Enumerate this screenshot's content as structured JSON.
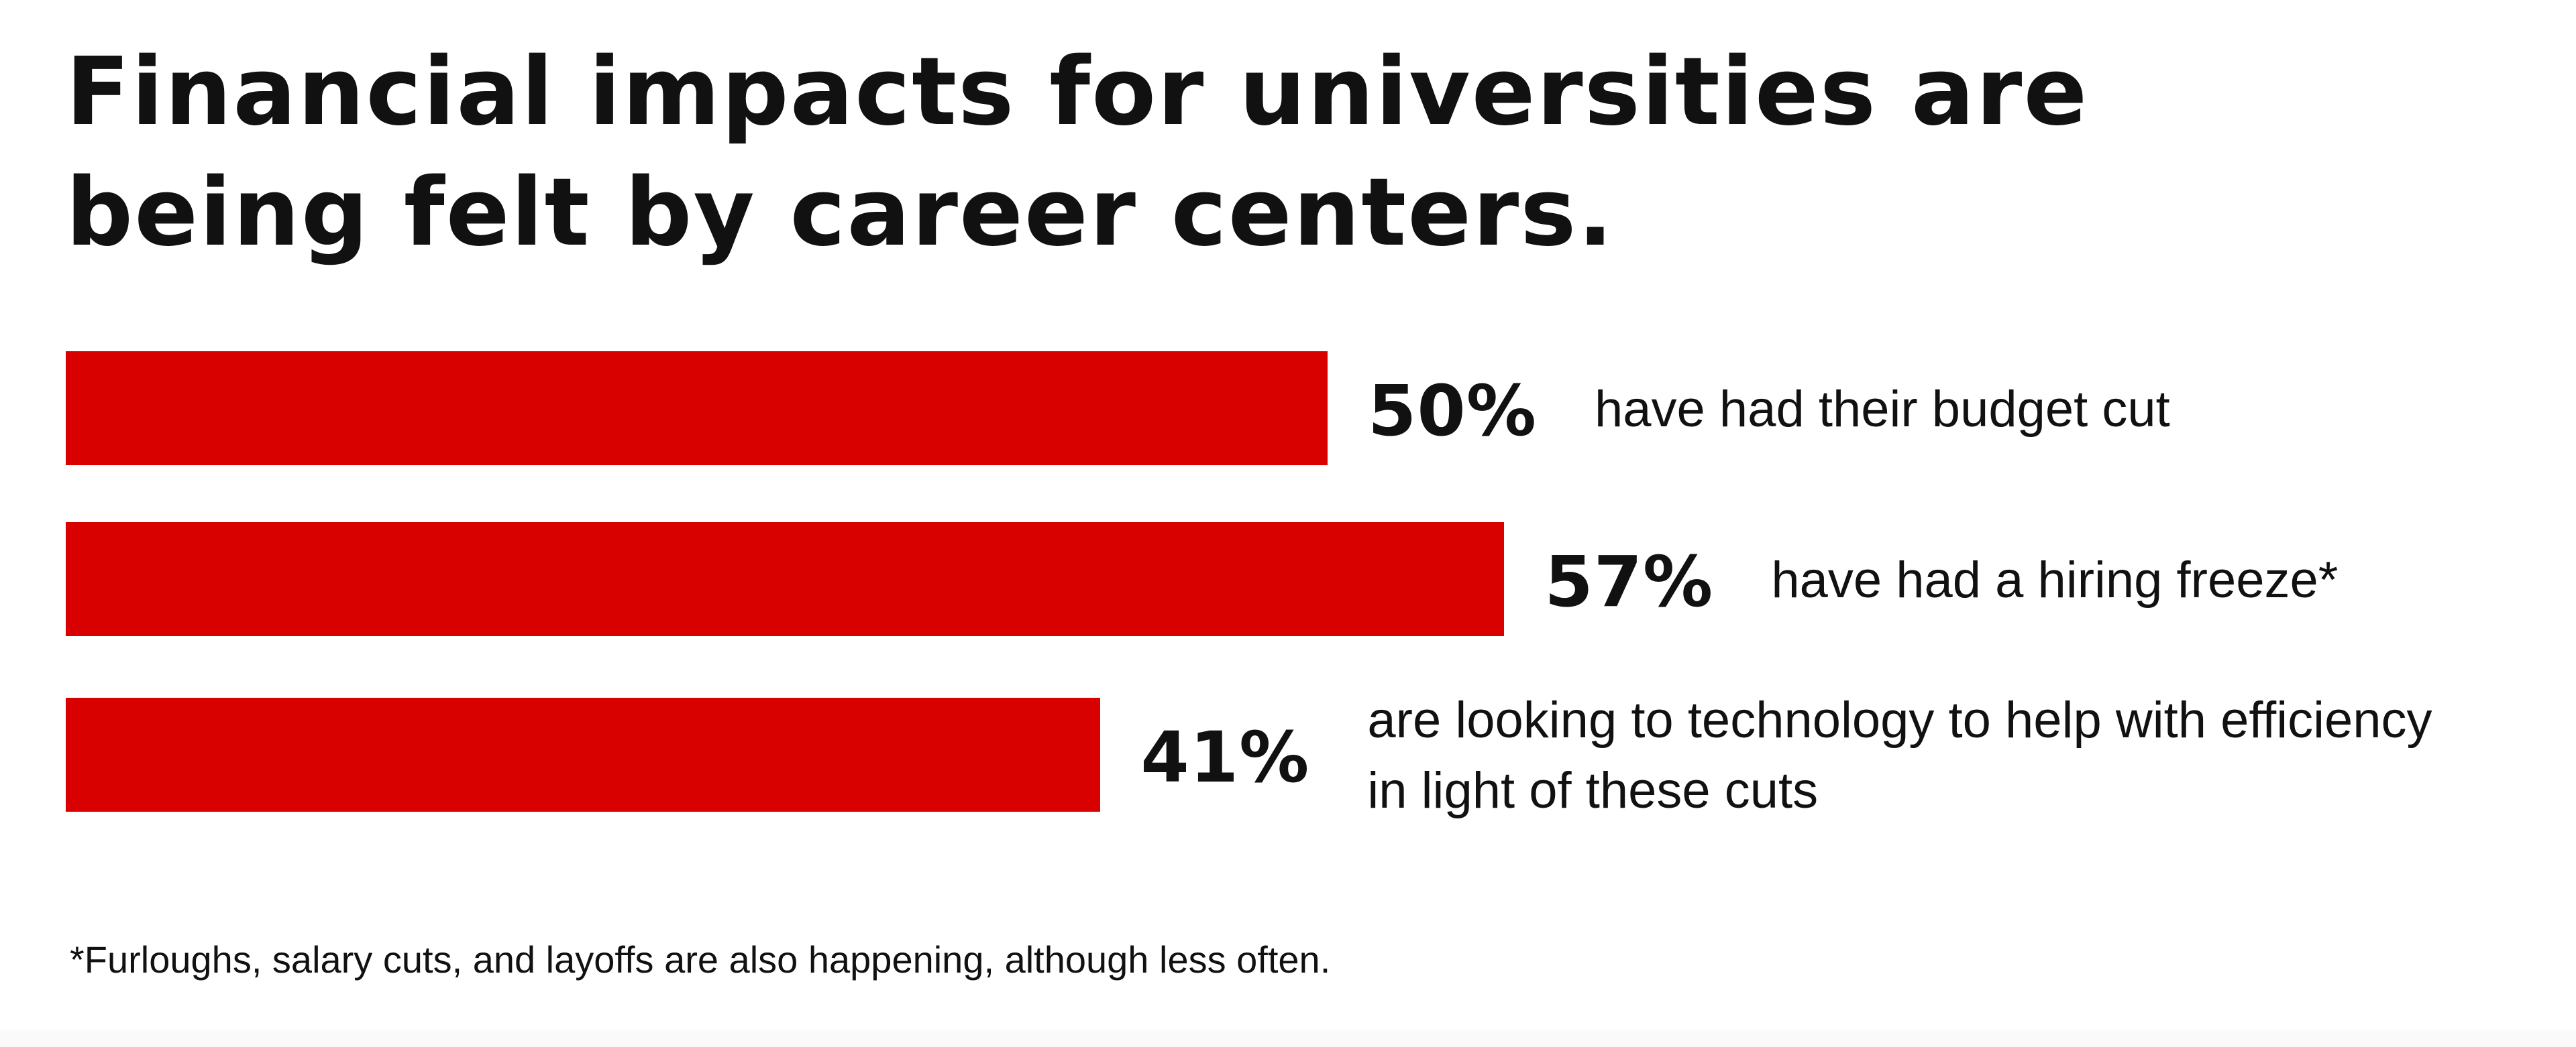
{
  "title": {
    "line1": "Financial impacts for universities are",
    "line2": "being felt by career centers."
  },
  "colors": {
    "bar": "#d90000",
    "text": "#111111",
    "background": "#ffffff"
  },
  "chart_data": {
    "type": "bar",
    "orientation": "horizontal",
    "title": "Financial impacts for universities are being felt by career centers.",
    "categories": [
      "have had their budget cut",
      "have had a hiring freeze*",
      "are looking to technology to help with efficiency in light of these cuts"
    ],
    "values": [
      50,
      57,
      41
    ],
    "value_labels": [
      "50%",
      "57%",
      "41%"
    ],
    "unit": "%",
    "xlim": [
      0,
      100
    ],
    "grid": false,
    "axes_visible": false
  },
  "bars": [
    {
      "value": 50,
      "label": "50%",
      "description": "have had their budget cut"
    },
    {
      "value": 57,
      "label": "57%",
      "description": "have had a hiring freeze*"
    },
    {
      "value": 41,
      "label": "41%",
      "description": "are looking to technology to help with efficiency\nin light of these cuts"
    }
  ],
  "footnote": "*Furloughs, salary cuts, and layoffs are also happening, although less often."
}
